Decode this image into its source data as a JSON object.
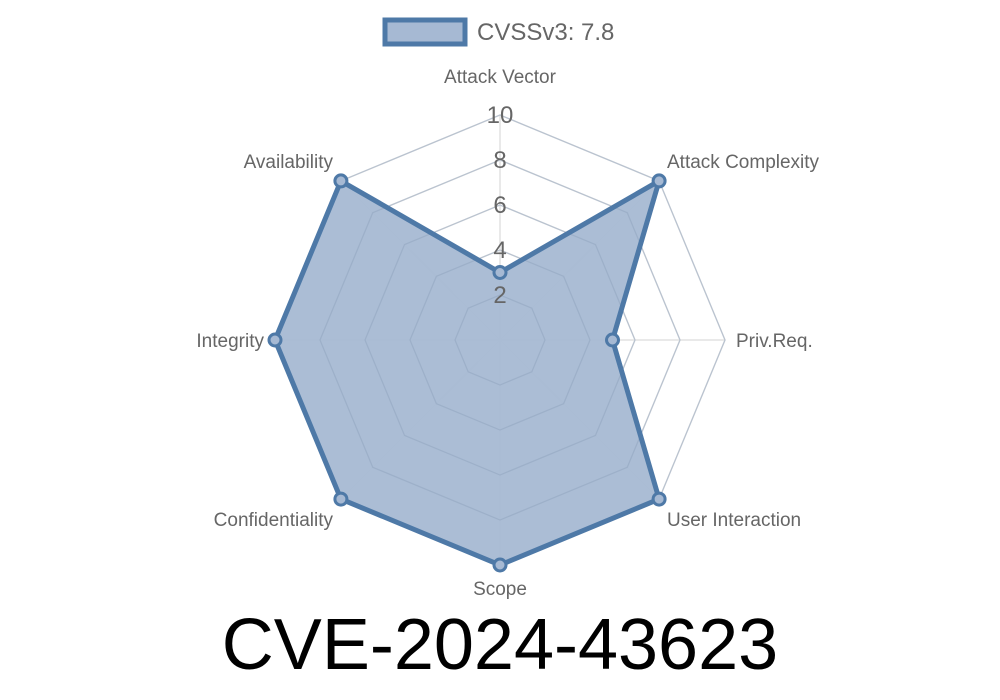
{
  "chart_data": {
    "type": "radar",
    "axes": [
      "Attack Vector",
      "Attack Complexity",
      "Priv.Req.",
      "User Interaction",
      "Scope",
      "Confidentiality",
      "Integrity",
      "Availability"
    ],
    "series": [
      {
        "name": "CVSSv3: 7.8",
        "values": [
          3,
          10,
          5,
          10,
          10,
          10,
          10,
          10
        ]
      }
    ],
    "rlim": [
      0,
      10
    ],
    "ticks": [
      "2",
      "4",
      "6",
      "8",
      "10"
    ],
    "grid": true,
    "legend": "top",
    "colors": {
      "line": "#4e79a7",
      "fill": "#a6b9d3",
      "grid": "#e2e2e2"
    }
  },
  "title": "CVE-2024-43623"
}
